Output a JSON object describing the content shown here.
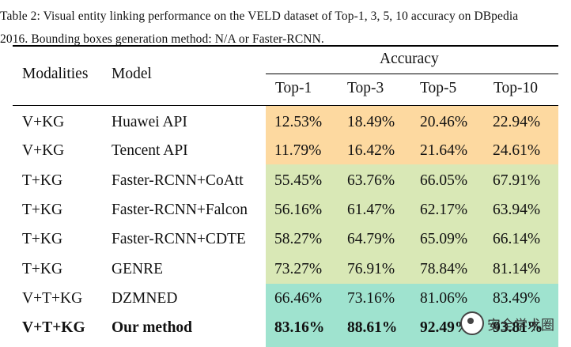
{
  "caption": {
    "line1": "Table 2: Visual entity linking performance on the VELD dataset of Top-1, 3, 5, 10 accuracy on DBpedia",
    "line2": "2016. Bounding boxes generation method: N/A or Faster-RCNN."
  },
  "header": {
    "modalities": "Modalities",
    "model": "Model",
    "accuracy": "Accuracy",
    "top1": "Top-1",
    "top3": "Top-3",
    "top5": "Top-5",
    "top10": "Top-10"
  },
  "rows": [
    {
      "modality": "V+KG",
      "model": "Huawei API",
      "top1": "12.53%",
      "top3": "18.49%",
      "top5": "20.46%",
      "top10": "22.94%"
    },
    {
      "modality": "V+KG",
      "model": "Tencent API",
      "top1": "11.79%",
      "top3": "16.42%",
      "top5": "21.64%",
      "top10": "24.61%"
    },
    {
      "modality": "T+KG",
      "model": "Faster-RCNN+CoAtt",
      "top1": "55.45%",
      "top3": "63.76%",
      "top5": "66.05%",
      "top10": "67.91%"
    },
    {
      "modality": "T+KG",
      "model": "Faster-RCNN+Falcon",
      "top1": "56.16%",
      "top3": "61.47%",
      "top5": "62.17%",
      "top10": "63.94%"
    },
    {
      "modality": "T+KG",
      "model": "Faster-RCNN+CDTE",
      "top1": "58.27%",
      "top3": "64.79%",
      "top5": "65.09%",
      "top10": "66.14%"
    },
    {
      "modality": "T+KG",
      "model": "GENRE",
      "top1": "73.27%",
      "top3": "76.91%",
      "top5": "78.84%",
      "top10": "81.14%"
    },
    {
      "modality": "V+T+KG",
      "model": "DZMNED",
      "top1": "66.46%",
      "top3": "73.16%",
      "top5": "81.06%",
      "top10": "83.49%"
    },
    {
      "modality": "V+T+KG",
      "model": "Our method",
      "top1": "83.16%",
      "top3": "88.61%",
      "top5": "92.49%",
      "top10": "93.81%"
    }
  ],
  "colors": {
    "orange": "#fdd9a0",
    "green": "#d9e8b6",
    "teal": "#9fe3cf"
  },
  "watermark": {
    "text": "安全学术圈"
  }
}
